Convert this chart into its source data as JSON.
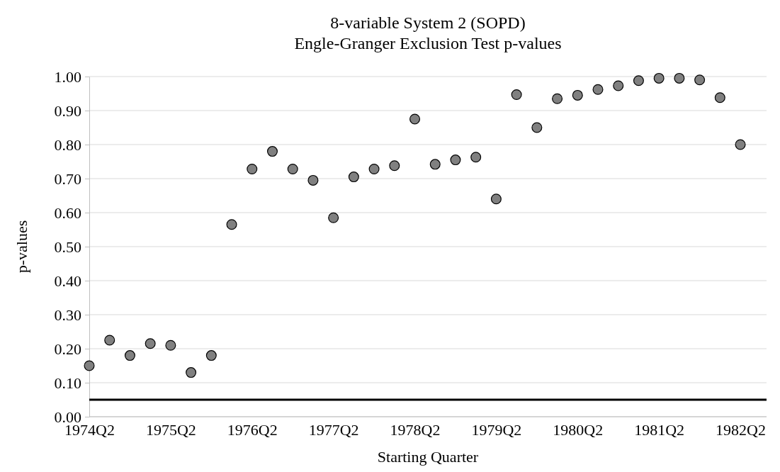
{
  "chart_data": {
    "type": "scatter",
    "title": "8-variable System 2 (SOPD)",
    "subtitle": "Engle-Granger Exclusion Test p-values",
    "xlabel": "Starting Quarter",
    "ylabel": "p-values",
    "categories": [
      "1974Q2",
      null,
      null,
      null,
      "1975Q2",
      null,
      null,
      null,
      "1976Q2",
      null,
      null,
      null,
      "1977Q2",
      null,
      null,
      null,
      "1978Q2",
      null,
      null,
      null,
      "1979Q2",
      null,
      null,
      null,
      "1980Q2",
      null,
      null,
      null,
      "1981Q2",
      null,
      null,
      null,
      "1982Q2"
    ],
    "series": [
      {
        "color": "#808080",
        "values": [
          0.15,
          0.225,
          0.18,
          0.215,
          0.21,
          0.13,
          0.18,
          0.565,
          0.728,
          0.78,
          0.728,
          0.695,
          0.585,
          0.705,
          0.728,
          0.738,
          0.875,
          0.742,
          0.755,
          0.763,
          0.64,
          0.947,
          0.85,
          0.935,
          0.945,
          0.962,
          0.973,
          0.988,
          0.995,
          0.995,
          0.99,
          0.938,
          0.8
        ]
      }
    ],
    "ylim": [
      0,
      1
    ],
    "yticks": [
      {
        "value": 0,
        "label": "0.00"
      },
      {
        "value": 0.1,
        "label": "0.10"
      },
      {
        "value": 0.2,
        "label": "0.20"
      },
      {
        "value": 0.3,
        "label": "0.30"
      },
      {
        "value": 0.4,
        "label": "0.40"
      },
      {
        "value": 0.5,
        "label": "0.50"
      },
      {
        "value": 0.6,
        "label": "0.60"
      },
      {
        "value": 0.7,
        "label": "0.70"
      },
      {
        "value": 0.8,
        "label": "0.80"
      },
      {
        "value": 0.9,
        "label": "0.90"
      },
      {
        "value": 1,
        "label": "1.00"
      }
    ],
    "ref_lines": [
      {
        "axis": "y",
        "value": 0.05,
        "color": "#000000"
      }
    ],
    "grid": "y",
    "marker": "circle"
  }
}
